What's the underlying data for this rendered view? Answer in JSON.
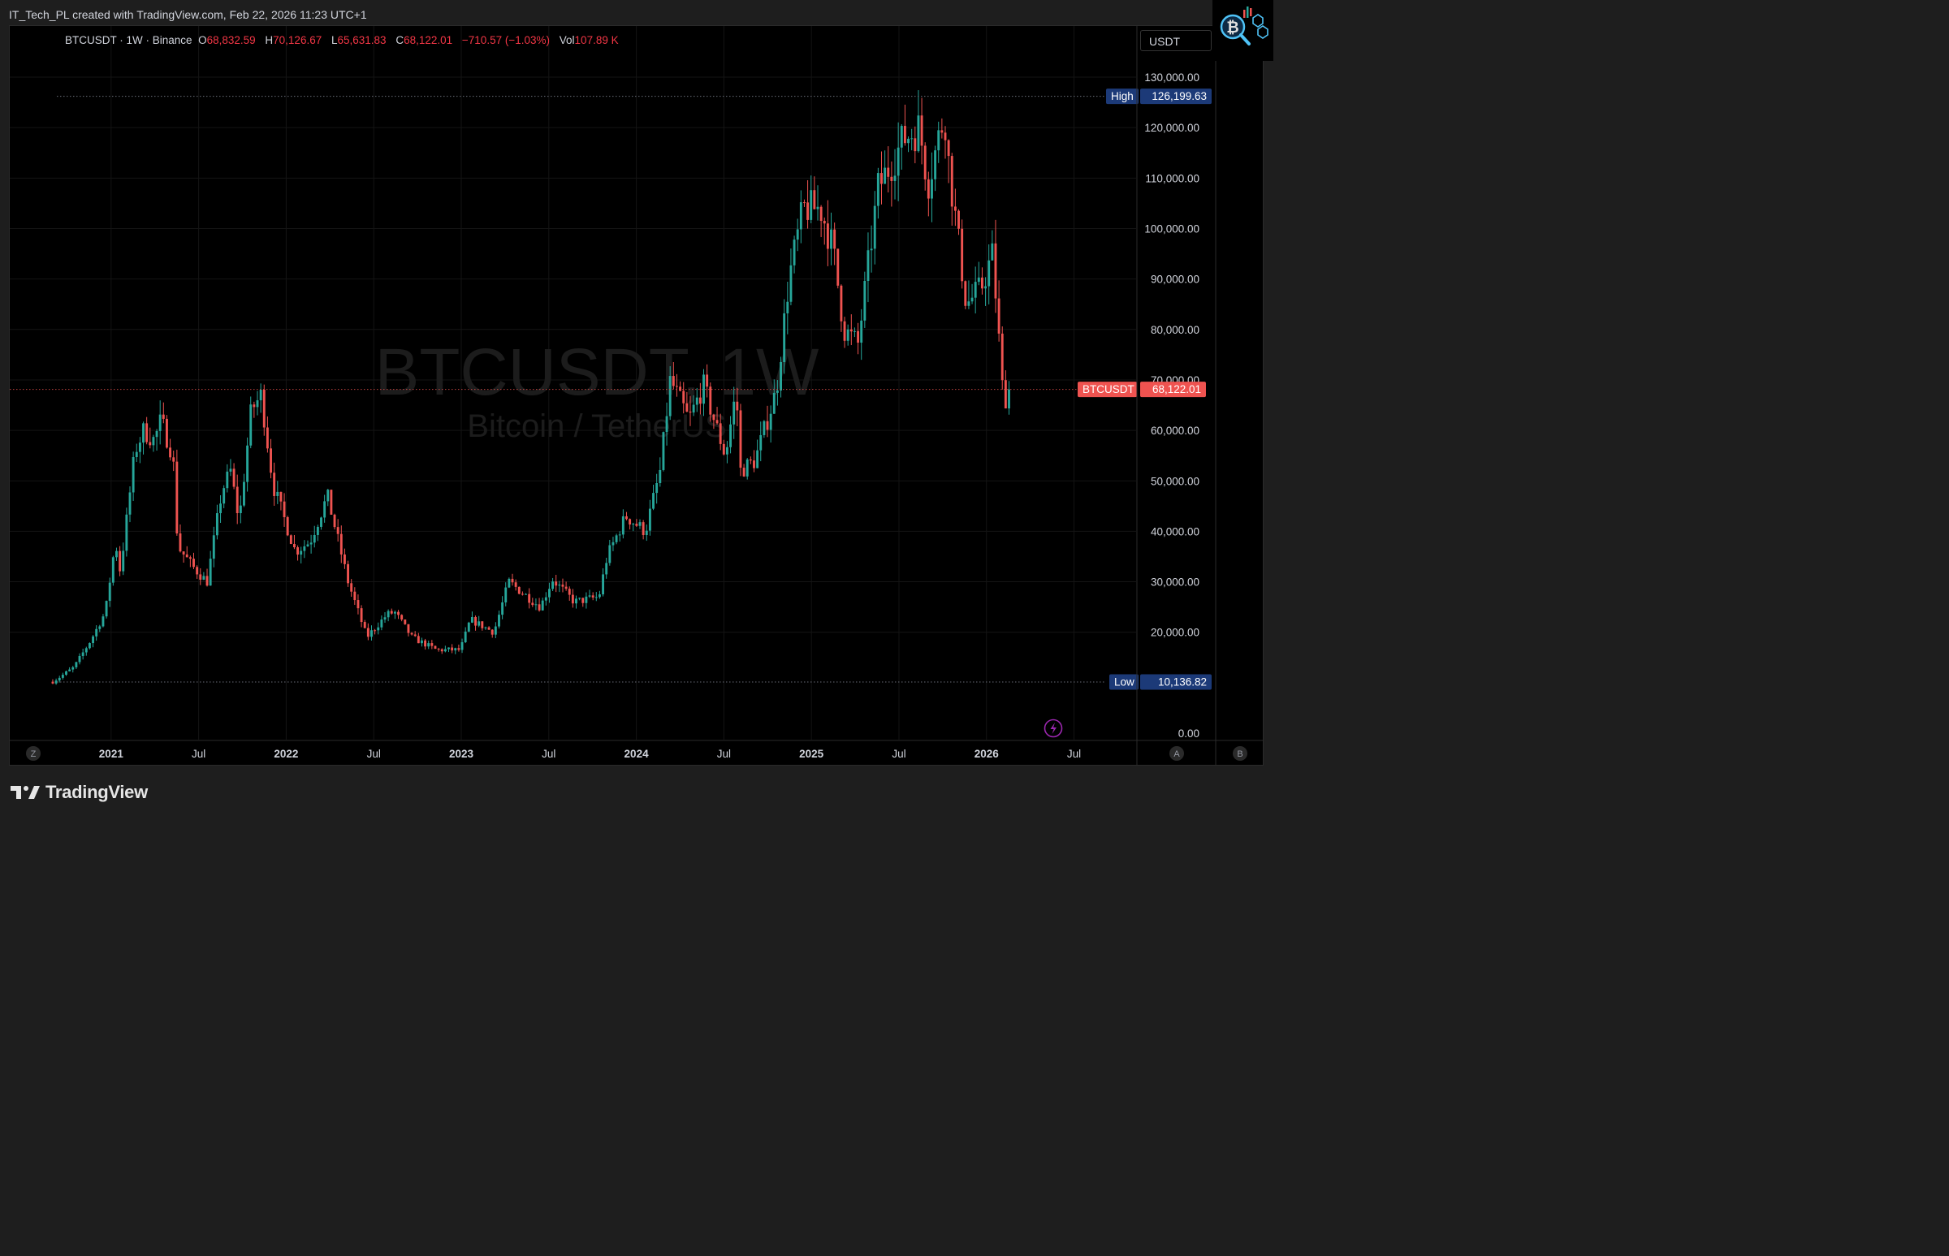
{
  "credit": "IT_Tech_PL created with TradingView.com, Feb 22, 2026 11:23 UTC+1",
  "legend": {
    "symbol": "BTCUSDT · 1W · Binance",
    "o_label": "O",
    "o": "68,832.59",
    "h_label": "H",
    "h": "70,126.67",
    "l_label": "L",
    "l": "65,631.83",
    "c_label": "C",
    "c": "68,122.01",
    "change": "−710.57 (−1.03%)",
    "vol_label": "Vol",
    "vol": "107.89 K"
  },
  "currency": "USDT",
  "watermark": {
    "line1": "BTCUSDT, 1W",
    "line2": "Bitcoin / TetherUS"
  },
  "markers": {
    "high_label": "High",
    "high_value": "126,199.63",
    "high": 126199.63,
    "low_label": "Low",
    "low_value": "10,136.82",
    "low": 10136.82,
    "last_label": "BTCUSDT",
    "last_value": "68,122.01",
    "last": 68122.01
  },
  "time_axis_ticks": [
    {
      "label": "2021",
      "t": 2021.0,
      "bold": true
    },
    {
      "label": "Jul",
      "t": 2021.5,
      "bold": false
    },
    {
      "label": "2022",
      "t": 2022.0,
      "bold": true
    },
    {
      "label": "Jul",
      "t": 2022.5,
      "bold": false
    },
    {
      "label": "2023",
      "t": 2023.0,
      "bold": true
    },
    {
      "label": "Jul",
      "t": 2023.5,
      "bold": false
    },
    {
      "label": "2024",
      "t": 2024.0,
      "bold": true
    },
    {
      "label": "Jul",
      "t": 2024.5,
      "bold": false
    },
    {
      "label": "2025",
      "t": 2025.0,
      "bold": true
    },
    {
      "label": "Jul",
      "t": 2025.5,
      "bold": false
    },
    {
      "label": "2026",
      "t": 2026.0,
      "bold": true
    },
    {
      "label": "Jul",
      "t": 2026.5,
      "bold": false
    }
  ],
  "corner_buttons": {
    "left": "Z",
    "auto": "A",
    "right": "B"
  },
  "footer_brand": "TradingView",
  "colors": {
    "up": "#26a69a",
    "down": "#ef5350",
    "bg": "#000000",
    "marker": "#1c3a78",
    "last": "#ef5350"
  },
  "chart_data": {
    "type": "candlestick",
    "timeframe": "1W",
    "y_ticks": [
      {
        "label": "0.00",
        "v": 0
      },
      {
        "label": "20,000.00",
        "v": 20000
      },
      {
        "label": "30,000.00",
        "v": 30000
      },
      {
        "label": "40,000.00",
        "v": 40000
      },
      {
        "label": "50,000.00",
        "v": 50000
      },
      {
        "label": "60,000.00",
        "v": 60000
      },
      {
        "label": "70,000.00",
        "v": 70000
      },
      {
        "label": "80,000.00",
        "v": 80000
      },
      {
        "label": "90,000.00",
        "v": 90000
      },
      {
        "label": "100,000.00",
        "v": 100000
      },
      {
        "label": "110,000.00",
        "v": 110000
      },
      {
        "label": "120,000.00",
        "v": 120000
      },
      {
        "label": "130,000.00",
        "v": 130000
      }
    ],
    "ylim": [
      0,
      130000
    ],
    "xlim": [
      "2020-09",
      "2026-09"
    ],
    "price_path": [
      [
        "2020-09-01",
        10200
      ],
      [
        "2020-10-15",
        13000
      ],
      [
        "2020-11-20",
        18500
      ],
      [
        "2020-12-20",
        24000
      ],
      [
        "2021-01-10",
        38000
      ],
      [
        "2021-01-20",
        32000
      ],
      [
        "2021-02-20",
        56000
      ],
      [
        "2021-03-10",
        60000
      ],
      [
        "2021-04-01",
        58000
      ],
      [
        "2021-04-15",
        62000
      ],
      [
        "2021-05-10",
        55000
      ],
      [
        "2021-05-20",
        37000
      ],
      [
        "2021-06-20",
        33000
      ],
      [
        "2021-07-20",
        30000
      ],
      [
        "2021-08-20",
        48000
      ],
      [
        "2021-09-07",
        52000
      ],
      [
        "2021-09-25",
        42000
      ],
      [
        "2021-10-20",
        64000
      ],
      [
        "2021-11-10",
        67000
      ],
      [
        "2021-12-05",
        49000
      ],
      [
        "2022-01-20",
        36000
      ],
      [
        "2022-02-20",
        38000
      ],
      [
        "2022-03-28",
        47000
      ],
      [
        "2022-05-10",
        30000
      ],
      [
        "2022-06-18",
        19000
      ],
      [
        "2022-07-30",
        23500
      ],
      [
        "2022-08-15",
        24000
      ],
      [
        "2022-09-20",
        19000
      ],
      [
        "2022-11-10",
        16500
      ],
      [
        "2022-12-30",
        16500
      ],
      [
        "2023-01-20",
        22500
      ],
      [
        "2023-03-10",
        20000
      ],
      [
        "2023-04-10",
        30000
      ],
      [
        "2023-06-15",
        25000
      ],
      [
        "2023-07-10",
        30500
      ],
      [
        "2023-08-25",
        26000
      ],
      [
        "2023-10-15",
        27000
      ],
      [
        "2023-11-01",
        35000
      ],
      [
        "2023-12-10",
        43000
      ],
      [
        "2024-01-20",
        40000
      ],
      [
        "2024-02-20",
        52000
      ],
      [
        "2024-03-12",
        70000
      ],
      [
        "2024-04-20",
        62000
      ],
      [
        "2024-05-20",
        69000
      ],
      [
        "2024-07-05",
        55000
      ],
      [
        "2024-07-28",
        68000
      ],
      [
        "2024-08-05",
        52000
      ],
      [
        "2024-09-05",
        54000
      ],
      [
        "2024-10-20",
        68000
      ],
      [
        "2024-11-15",
        90000
      ],
      [
        "2024-12-15",
        104000
      ],
      [
        "2025-01-20",
        104000
      ],
      [
        "2025-02-15",
        96000
      ],
      [
        "2025-03-10",
        80000
      ],
      [
        "2025-04-08",
        77000
      ],
      [
        "2025-05-20",
        108000
      ],
      [
        "2025-07-14",
        118000
      ],
      [
        "2025-08-14",
        120000
      ],
      [
        "2025-09-01",
        109000
      ],
      [
        "2025-10-06",
        123000
      ],
      [
        "2025-10-15",
        112000
      ],
      [
        "2025-11-20",
        85000
      ],
      [
        "2025-12-20",
        88000
      ],
      [
        "2026-01-14",
        95000
      ],
      [
        "2026-02-05",
        66000
      ],
      [
        "2026-02-22",
        68122
      ]
    ]
  }
}
